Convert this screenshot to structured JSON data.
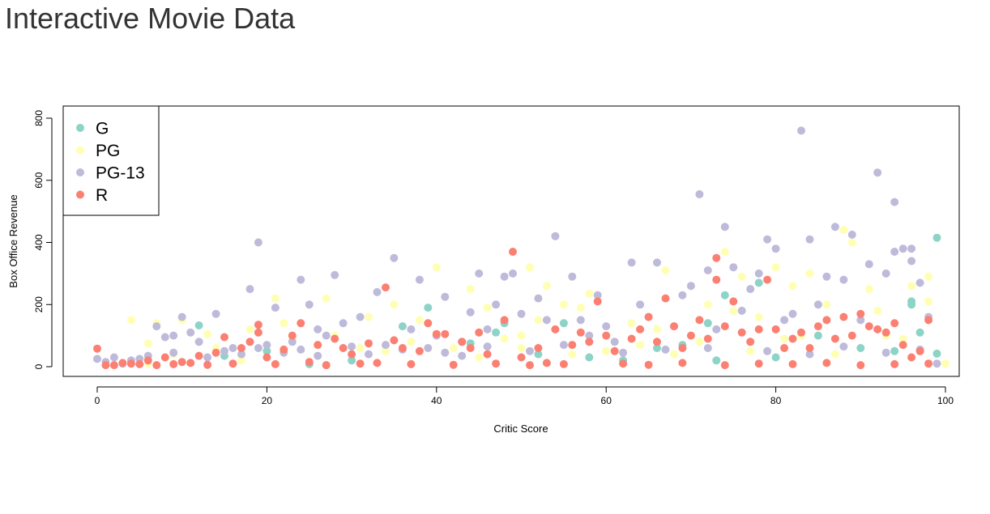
{
  "page": {
    "title": "Interactive Movie Data"
  },
  "chart_data": {
    "type": "scatter",
    "title": "",
    "xlabel": "Critic Score",
    "ylabel": "Box Office Revenue",
    "xlim": [
      -3,
      103
    ],
    "ylim": [
      -30,
      840
    ],
    "xticks": [
      0,
      20,
      40,
      60,
      80,
      100
    ],
    "yticks": [
      0,
      200,
      400,
      600,
      800
    ],
    "grid": false,
    "legend": {
      "position": "top-left"
    },
    "series": [
      {
        "name": "G",
        "color": "#8DD3C7",
        "points": [
          [
            12,
            133
          ],
          [
            25,
            8
          ],
          [
            27,
            5
          ],
          [
            36,
            130
          ],
          [
            39,
            190
          ],
          [
            44,
            75
          ],
          [
            47,
            110
          ],
          [
            48,
            140
          ],
          [
            55,
            140
          ],
          [
            58,
            30
          ],
          [
            62,
            20
          ],
          [
            66,
            60
          ],
          [
            69,
            70
          ],
          [
            72,
            140
          ],
          [
            73,
            20
          ],
          [
            74,
            230
          ],
          [
            78,
            270
          ],
          [
            80,
            30
          ],
          [
            85,
            100
          ],
          [
            90,
            60
          ],
          [
            94,
            50
          ],
          [
            96,
            210
          ],
          [
            96,
            200
          ],
          [
            97,
            110
          ],
          [
            99,
            415
          ],
          [
            99,
            42
          ],
          [
            15,
            35
          ],
          [
            20,
            50
          ],
          [
            30,
            20
          ],
          [
            52,
            40
          ]
        ]
      },
      {
        "name": "PG",
        "color": "#FFFFB3",
        "points": [
          [
            4,
            150
          ],
          [
            6,
            75
          ],
          [
            7,
            140
          ],
          [
            10,
            150
          ],
          [
            13,
            105
          ],
          [
            18,
            120
          ],
          [
            21,
            220
          ],
          [
            22,
            140
          ],
          [
            27,
            220
          ],
          [
            28,
            100
          ],
          [
            32,
            160
          ],
          [
            35,
            200
          ],
          [
            38,
            150
          ],
          [
            40,
            320
          ],
          [
            44,
            250
          ],
          [
            46,
            190
          ],
          [
            50,
            100
          ],
          [
            51,
            320
          ],
          [
            52,
            150
          ],
          [
            53,
            260
          ],
          [
            55,
            200
          ],
          [
            57,
            190
          ],
          [
            58,
            235
          ],
          [
            61,
            80
          ],
          [
            63,
            140
          ],
          [
            66,
            120
          ],
          [
            67,
            310
          ],
          [
            70,
            100
          ],
          [
            72,
            200
          ],
          [
            74,
            370
          ],
          [
            75,
            180
          ],
          [
            76,
            290
          ],
          [
            78,
            160
          ],
          [
            80,
            320
          ],
          [
            82,
            260
          ],
          [
            83,
            100
          ],
          [
            84,
            300
          ],
          [
            86,
            200
          ],
          [
            88,
            440
          ],
          [
            89,
            400
          ],
          [
            91,
            250
          ],
          [
            92,
            180
          ],
          [
            93,
            100
          ],
          [
            95,
            90
          ],
          [
            96,
            260
          ],
          [
            98,
            290
          ],
          [
            98,
            210
          ],
          [
            100,
            10
          ],
          [
            2,
            30
          ],
          [
            6,
            10
          ],
          [
            9,
            40
          ],
          [
            14,
            60
          ],
          [
            17,
            20
          ],
          [
            23,
            90
          ],
          [
            26,
            70
          ],
          [
            31,
            60
          ],
          [
            34,
            50
          ],
          [
            37,
            80
          ],
          [
            42,
            60
          ],
          [
            45,
            30
          ],
          [
            48,
            90
          ],
          [
            50,
            60
          ],
          [
            56,
            40
          ],
          [
            60,
            50
          ],
          [
            64,
            70
          ],
          [
            68,
            40
          ],
          [
            71,
            80
          ],
          [
            77,
            50
          ],
          [
            81,
            90
          ],
          [
            87,
            40
          ]
        ]
      },
      {
        "name": "PG-13",
        "color": "#BEBADA",
        "points": [
          [
            0,
            25
          ],
          [
            2,
            30
          ],
          [
            4,
            20
          ],
          [
            7,
            130
          ],
          [
            8,
            95
          ],
          [
            9,
            100
          ],
          [
            10,
            160
          ],
          [
            11,
            110
          ],
          [
            12,
            80
          ],
          [
            14,
            170
          ],
          [
            16,
            60
          ],
          [
            18,
            250
          ],
          [
            19,
            400
          ],
          [
            21,
            190
          ],
          [
            23,
            80
          ],
          [
            24,
            280
          ],
          [
            25,
            200
          ],
          [
            26,
            120
          ],
          [
            27,
            100
          ],
          [
            28,
            295
          ],
          [
            29,
            140
          ],
          [
            31,
            160
          ],
          [
            33,
            240
          ],
          [
            35,
            350
          ],
          [
            37,
            120
          ],
          [
            38,
            280
          ],
          [
            40,
            100
          ],
          [
            41,
            225
          ],
          [
            43,
            80
          ],
          [
            44,
            175
          ],
          [
            45,
            300
          ],
          [
            46,
            120
          ],
          [
            47,
            200
          ],
          [
            48,
            290
          ],
          [
            49,
            300
          ],
          [
            50,
            170
          ],
          [
            52,
            220
          ],
          [
            53,
            150
          ],
          [
            54,
            420
          ],
          [
            56,
            290
          ],
          [
            57,
            150
          ],
          [
            58,
            100
          ],
          [
            59,
            230
          ],
          [
            60,
            130
          ],
          [
            61,
            80
          ],
          [
            63,
            335
          ],
          [
            64,
            200
          ],
          [
            65,
            160
          ],
          [
            66,
            335
          ],
          [
            68,
            130
          ],
          [
            69,
            230
          ],
          [
            70,
            260
          ],
          [
            71,
            555
          ],
          [
            72,
            310
          ],
          [
            73,
            120
          ],
          [
            74,
            450
          ],
          [
            75,
            320
          ],
          [
            76,
            180
          ],
          [
            77,
            250
          ],
          [
            78,
            300
          ],
          [
            79,
            410
          ],
          [
            80,
            380
          ],
          [
            81,
            150
          ],
          [
            82,
            170
          ],
          [
            83,
            760
          ],
          [
            84,
            410
          ],
          [
            85,
            200
          ],
          [
            86,
            290
          ],
          [
            87,
            450
          ],
          [
            88,
            280
          ],
          [
            89,
            425
          ],
          [
            90,
            150
          ],
          [
            91,
            330
          ],
          [
            92,
            625
          ],
          [
            93,
            300
          ],
          [
            94,
            530
          ],
          [
            94,
            370
          ],
          [
            95,
            380
          ],
          [
            96,
            340
          ],
          [
            96,
            380
          ],
          [
            97,
            270
          ],
          [
            98,
            160
          ],
          [
            1,
            15
          ],
          [
            3,
            10
          ],
          [
            5,
            25
          ],
          [
            6,
            35
          ],
          [
            9,
            45
          ],
          [
            13,
            30
          ],
          [
            15,
            50
          ],
          [
            17,
            40
          ],
          [
            19,
            60
          ],
          [
            20,
            70
          ],
          [
            22,
            45
          ],
          [
            24,
            55
          ],
          [
            26,
            35
          ],
          [
            30,
            65
          ],
          [
            32,
            40
          ],
          [
            34,
            70
          ],
          [
            36,
            55
          ],
          [
            39,
            60
          ],
          [
            41,
            45
          ],
          [
            43,
            35
          ],
          [
            46,
            65
          ],
          [
            51,
            50
          ],
          [
            55,
            70
          ],
          [
            62,
            45
          ],
          [
            67,
            55
          ],
          [
            72,
            60
          ],
          [
            79,
            50
          ],
          [
            84,
            40
          ],
          [
            88,
            65
          ],
          [
            93,
            45
          ],
          [
            97,
            55
          ],
          [
            99,
            10
          ]
        ]
      },
      {
        "name": "R",
        "color": "#FB8072",
        "points": [
          [
            0,
            58
          ],
          [
            1,
            5
          ],
          [
            3,
            12
          ],
          [
            5,
            8
          ],
          [
            6,
            20
          ],
          [
            8,
            30
          ],
          [
            10,
            15
          ],
          [
            12,
            35
          ],
          [
            14,
            45
          ],
          [
            15,
            95
          ],
          [
            17,
            60
          ],
          [
            18,
            80
          ],
          [
            19,
            110
          ],
          [
            19,
            135
          ],
          [
            20,
            30
          ],
          [
            22,
            55
          ],
          [
            23,
            100
          ],
          [
            24,
            140
          ],
          [
            26,
            70
          ],
          [
            28,
            90
          ],
          [
            29,
            60
          ],
          [
            30,
            40
          ],
          [
            32,
            75
          ],
          [
            34,
            255
          ],
          [
            35,
            85
          ],
          [
            36,
            60
          ],
          [
            38,
            50
          ],
          [
            39,
            140
          ],
          [
            40,
            105
          ],
          [
            41,
            105
          ],
          [
            43,
            80
          ],
          [
            44,
            60
          ],
          [
            45,
            110
          ],
          [
            46,
            40
          ],
          [
            48,
            150
          ],
          [
            49,
            370
          ],
          [
            50,
            30
          ],
          [
            52,
            60
          ],
          [
            54,
            120
          ],
          [
            56,
            70
          ],
          [
            57,
            110
          ],
          [
            58,
            80
          ],
          [
            59,
            210
          ],
          [
            60,
            100
          ],
          [
            61,
            50
          ],
          [
            63,
            90
          ],
          [
            64,
            120
          ],
          [
            65,
            160
          ],
          [
            66,
            80
          ],
          [
            67,
            220
          ],
          [
            68,
            130
          ],
          [
            69,
            60
          ],
          [
            70,
            100
          ],
          [
            71,
            150
          ],
          [
            72,
            90
          ],
          [
            73,
            350
          ],
          [
            73,
            280
          ],
          [
            74,
            130
          ],
          [
            75,
            210
          ],
          [
            76,
            110
          ],
          [
            77,
            80
          ],
          [
            78,
            120
          ],
          [
            79,
            280
          ],
          [
            80,
            120
          ],
          [
            81,
            60
          ],
          [
            82,
            90
          ],
          [
            83,
            110
          ],
          [
            84,
            60
          ],
          [
            85,
            130
          ],
          [
            86,
            150
          ],
          [
            87,
            90
          ],
          [
            88,
            160
          ],
          [
            89,
            100
          ],
          [
            90,
            170
          ],
          [
            91,
            130
          ],
          [
            92,
            120
          ],
          [
            93,
            110
          ],
          [
            94,
            140
          ],
          [
            95,
            70
          ],
          [
            96,
            30
          ],
          [
            97,
            50
          ],
          [
            98,
            150
          ],
          [
            2,
            5
          ],
          [
            4,
            10
          ],
          [
            7,
            5
          ],
          [
            9,
            8
          ],
          [
            11,
            12
          ],
          [
            13,
            6
          ],
          [
            16,
            10
          ],
          [
            21,
            8
          ],
          [
            25,
            15
          ],
          [
            27,
            5
          ],
          [
            31,
            10
          ],
          [
            33,
            12
          ],
          [
            37,
            8
          ],
          [
            42,
            6
          ],
          [
            47,
            10
          ],
          [
            51,
            5
          ],
          [
            53,
            12
          ],
          [
            55,
            8
          ],
          [
            62,
            10
          ],
          [
            65,
            6
          ],
          [
            69,
            12
          ],
          [
            74,
            5
          ],
          [
            78,
            10
          ],
          [
            82,
            8
          ],
          [
            86,
            12
          ],
          [
            90,
            5
          ],
          [
            94,
            8
          ],
          [
            98,
            10
          ]
        ]
      }
    ]
  }
}
